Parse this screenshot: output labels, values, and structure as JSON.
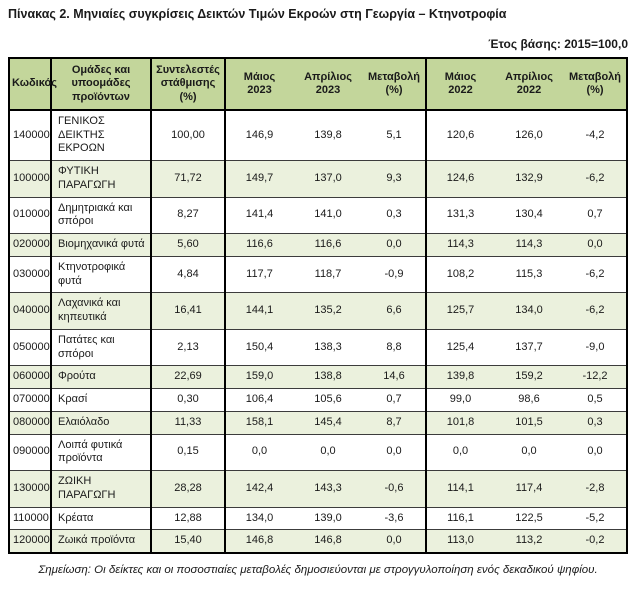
{
  "page": {
    "title": "Πίνακας 2. Μηνιαίες συγκρίσεις Δεικτών Τιμών Εκροών στη Γεωργία – Κτηνοτροφία",
    "base_year_label": "Έτος βάσης: 2015=100,0",
    "footnote": "Σημείωση: Οι δείκτες και οι ποσοστιαίες μεταβολές δημοσιεύονται με στρογγυλοποίηση ενός δεκαδικού ψηφίου."
  },
  "colors": {
    "header_bg": "#c3d69b",
    "stripe_bg": "#ebf1dd",
    "border_dark": "#000000"
  },
  "table": {
    "headers": [
      "Κωδικός",
      "Ομάδες και\nυποομάδες\nπροϊόντων",
      "Συντελεστές\nστάθμισης\n(%)",
      "Μάιος\n2023",
      "Απρίλιος\n2023",
      "Μεταβολή\n(%)",
      "Μάιος\n2022",
      "Απρίλιος\n2022",
      "Μεταβολή\n(%)"
    ],
    "rows": [
      {
        "code": "140000",
        "group": "ΓΕΝΙΚΟΣ ΔΕΙΚΤΗΣ ΕΚΡΟΩΝ",
        "weight": "100,00",
        "may_2023": "146,9",
        "apr_2023": "139,8",
        "change_2023": "5,1",
        "may_2022": "120,6",
        "apr_2022": "126,0",
        "change_2022": "-4,2"
      },
      {
        "code": "100000",
        "group": "ΦΥΤΙΚΗ ΠΑΡΑΓΩΓΗ",
        "weight": "71,72",
        "may_2023": "149,7",
        "apr_2023": "137,0",
        "change_2023": "9,3",
        "may_2022": "124,6",
        "apr_2022": "132,9",
        "change_2022": "-6,2"
      },
      {
        "code": "010000",
        "group": "Δημητριακά και σπόροι",
        "weight": "8,27",
        "may_2023": "141,4",
        "apr_2023": "141,0",
        "change_2023": "0,3",
        "may_2022": "131,3",
        "apr_2022": "130,4",
        "change_2022": "0,7"
      },
      {
        "code": "020000",
        "group": "Βιομηχανικά φυτά",
        "weight": "5,60",
        "may_2023": "116,6",
        "apr_2023": "116,6",
        "change_2023": "0,0",
        "may_2022": "114,3",
        "apr_2022": "114,3",
        "change_2022": "0,0"
      },
      {
        "code": "030000",
        "group": "Κτηνοτροφικά φυτά",
        "weight": "4,84",
        "may_2023": "117,7",
        "apr_2023": "118,7",
        "change_2023": "-0,9",
        "may_2022": "108,2",
        "apr_2022": "115,3",
        "change_2022": "-6,2"
      },
      {
        "code": "040000",
        "group": "Λαχανικά και κηπευτικά",
        "weight": "16,41",
        "may_2023": "144,1",
        "apr_2023": "135,2",
        "change_2023": "6,6",
        "may_2022": "125,7",
        "apr_2022": "134,0",
        "change_2022": "-6,2"
      },
      {
        "code": "050000",
        "group": "Πατάτες και σπόροι",
        "weight": "2,13",
        "may_2023": "150,4",
        "apr_2023": "138,3",
        "change_2023": "8,8",
        "may_2022": "125,4",
        "apr_2022": "137,7",
        "change_2022": "-9,0"
      },
      {
        "code": "060000",
        "group": "Φρούτα",
        "weight": "22,69",
        "may_2023": "159,0",
        "apr_2023": "138,8",
        "change_2023": "14,6",
        "may_2022": "139,8",
        "apr_2022": "159,2",
        "change_2022": "-12,2"
      },
      {
        "code": "070000",
        "group": "Κρασί",
        "weight": "0,30",
        "may_2023": "106,4",
        "apr_2023": "105,6",
        "change_2023": "0,7",
        "may_2022": "99,0",
        "apr_2022": "98,6",
        "change_2022": "0,5"
      },
      {
        "code": "080000",
        "group": "Ελαιόλαδο",
        "weight": "11,33",
        "may_2023": "158,1",
        "apr_2023": "145,4",
        "change_2023": "8,7",
        "may_2022": "101,8",
        "apr_2022": "101,5",
        "change_2022": "0,3"
      },
      {
        "code": "090000",
        "group": "Λοιπά φυτικά προϊόντα",
        "weight": "0,15",
        "may_2023": "0,0",
        "apr_2023": "0,0",
        "change_2023": "0,0",
        "may_2022": "0,0",
        "apr_2022": "0,0",
        "change_2022": "0,0"
      },
      {
        "code": "130000",
        "group": "ΖΩΙΚΗ ΠΑΡΑΓΩΓΗ",
        "weight": "28,28",
        "may_2023": "142,4",
        "apr_2023": "143,3",
        "change_2023": "-0,6",
        "may_2022": "114,1",
        "apr_2022": "117,4",
        "change_2022": "-2,8"
      },
      {
        "code": "110000",
        "group": "Κρέατα",
        "weight": "12,88",
        "may_2023": "134,0",
        "apr_2023": "139,0",
        "change_2023": "-3,6",
        "may_2022": "116,1",
        "apr_2022": "122,5",
        "change_2022": "-5,2"
      },
      {
        "code": "120000",
        "group": "Ζωικά προϊόντα",
        "weight": "15,40",
        "may_2023": "146,8",
        "apr_2023": "146,8",
        "change_2023": "0,0",
        "may_2022": "113,0",
        "apr_2022": "113,2",
        "change_2022": "-0,2"
      }
    ]
  }
}
